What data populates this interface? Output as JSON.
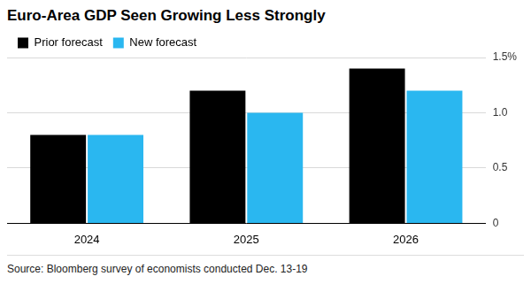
{
  "chart_data": {
    "type": "bar",
    "title": "Euro-Area GDP Seen Growing Less Strongly",
    "categories": [
      "2024",
      "2025",
      "2026"
    ],
    "series": [
      {
        "name": "Prior forecast",
        "color": "#000000",
        "values": [
          0.8,
          1.2,
          1.4
        ]
      },
      {
        "name": "New forecast",
        "color": "#2ab7f0",
        "values": [
          0.8,
          1.0,
          1.2
        ]
      }
    ],
    "ylim": [
      0,
      1.5
    ],
    "yticks": [
      0,
      0.5,
      {
        "value": 1,
        "label": "1.0"
      },
      {
        "value": 1.5,
        "label": "1.5%"
      }
    ],
    "grid": true,
    "legend": "top left",
    "source": "Source: Bloomberg survey of economists conducted Dec. 13-19"
  }
}
